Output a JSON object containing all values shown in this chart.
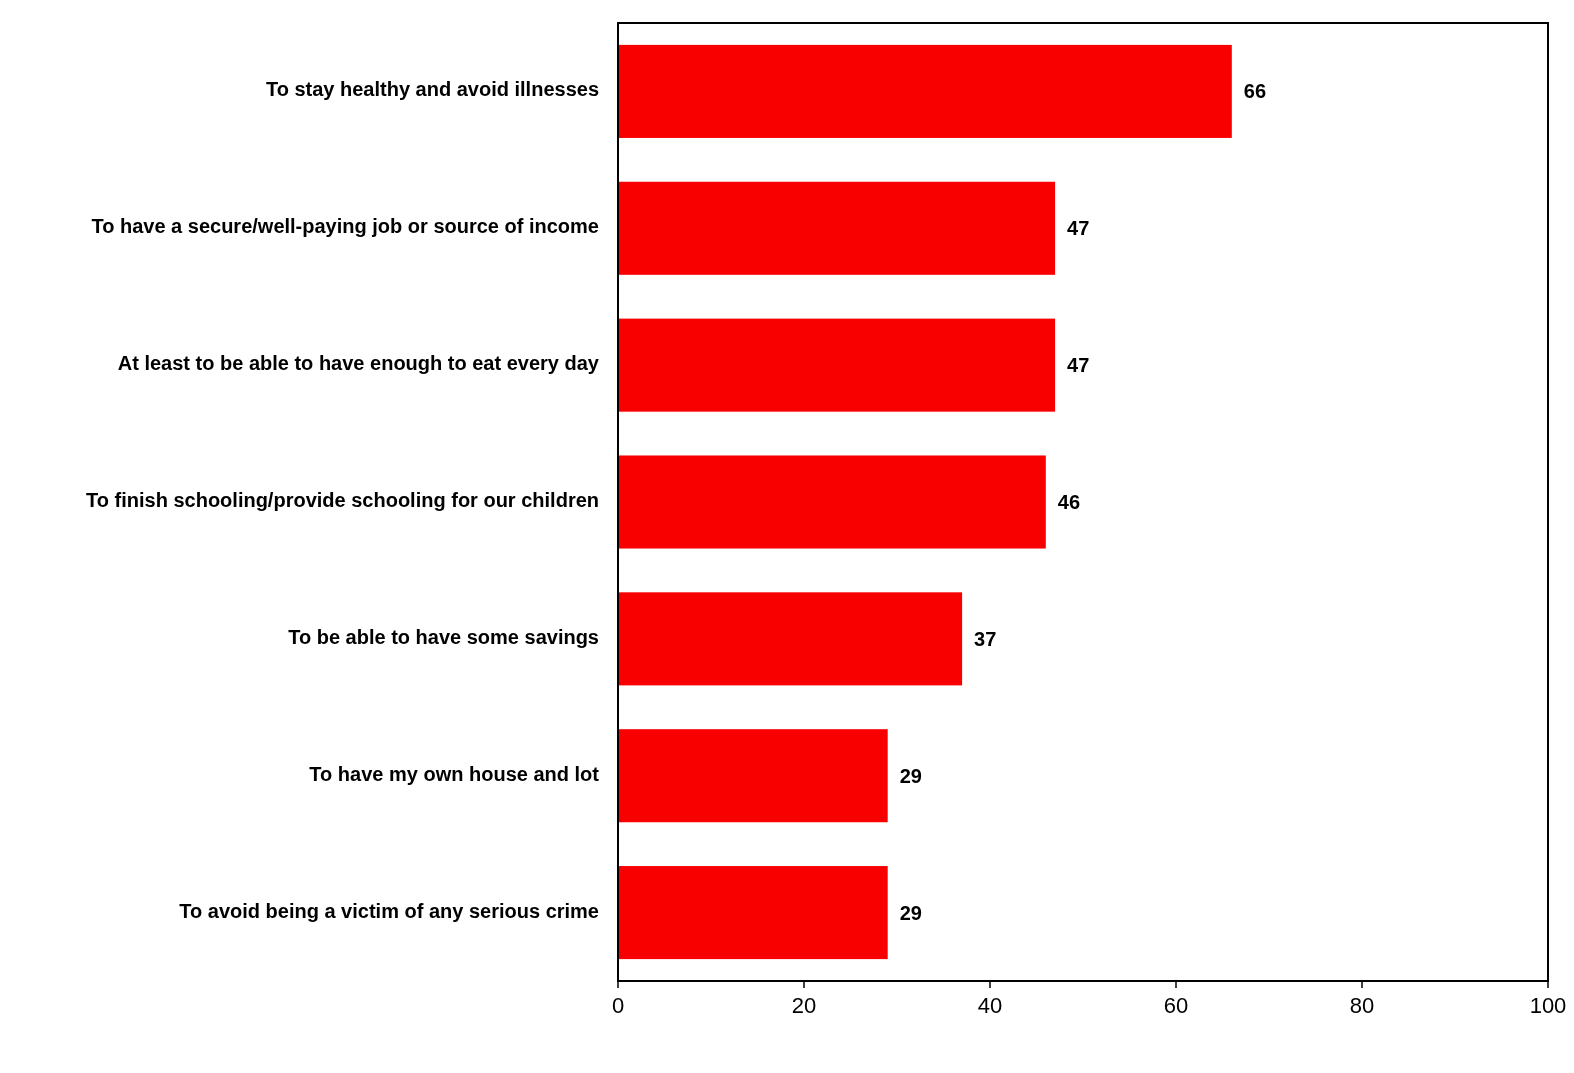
{
  "chart_data": {
    "type": "bar",
    "orientation": "horizontal",
    "categories": [
      "To stay healthy and avoid illnesses",
      "To have a secure/well-paying job or source of income",
      "At least to be able to have enough to eat every day",
      "To finish schooling/provide schooling for our children",
      "To be able to have some savings",
      "To have my own house and lot",
      "To avoid being a victim of any serious crime"
    ],
    "values": [
      66,
      47,
      47,
      46,
      37,
      29,
      29
    ],
    "color": "#f80000",
    "xlim": [
      0,
      100
    ],
    "xticks": [
      0,
      20,
      40,
      60,
      80,
      100
    ],
    "data_labels": true
  }
}
